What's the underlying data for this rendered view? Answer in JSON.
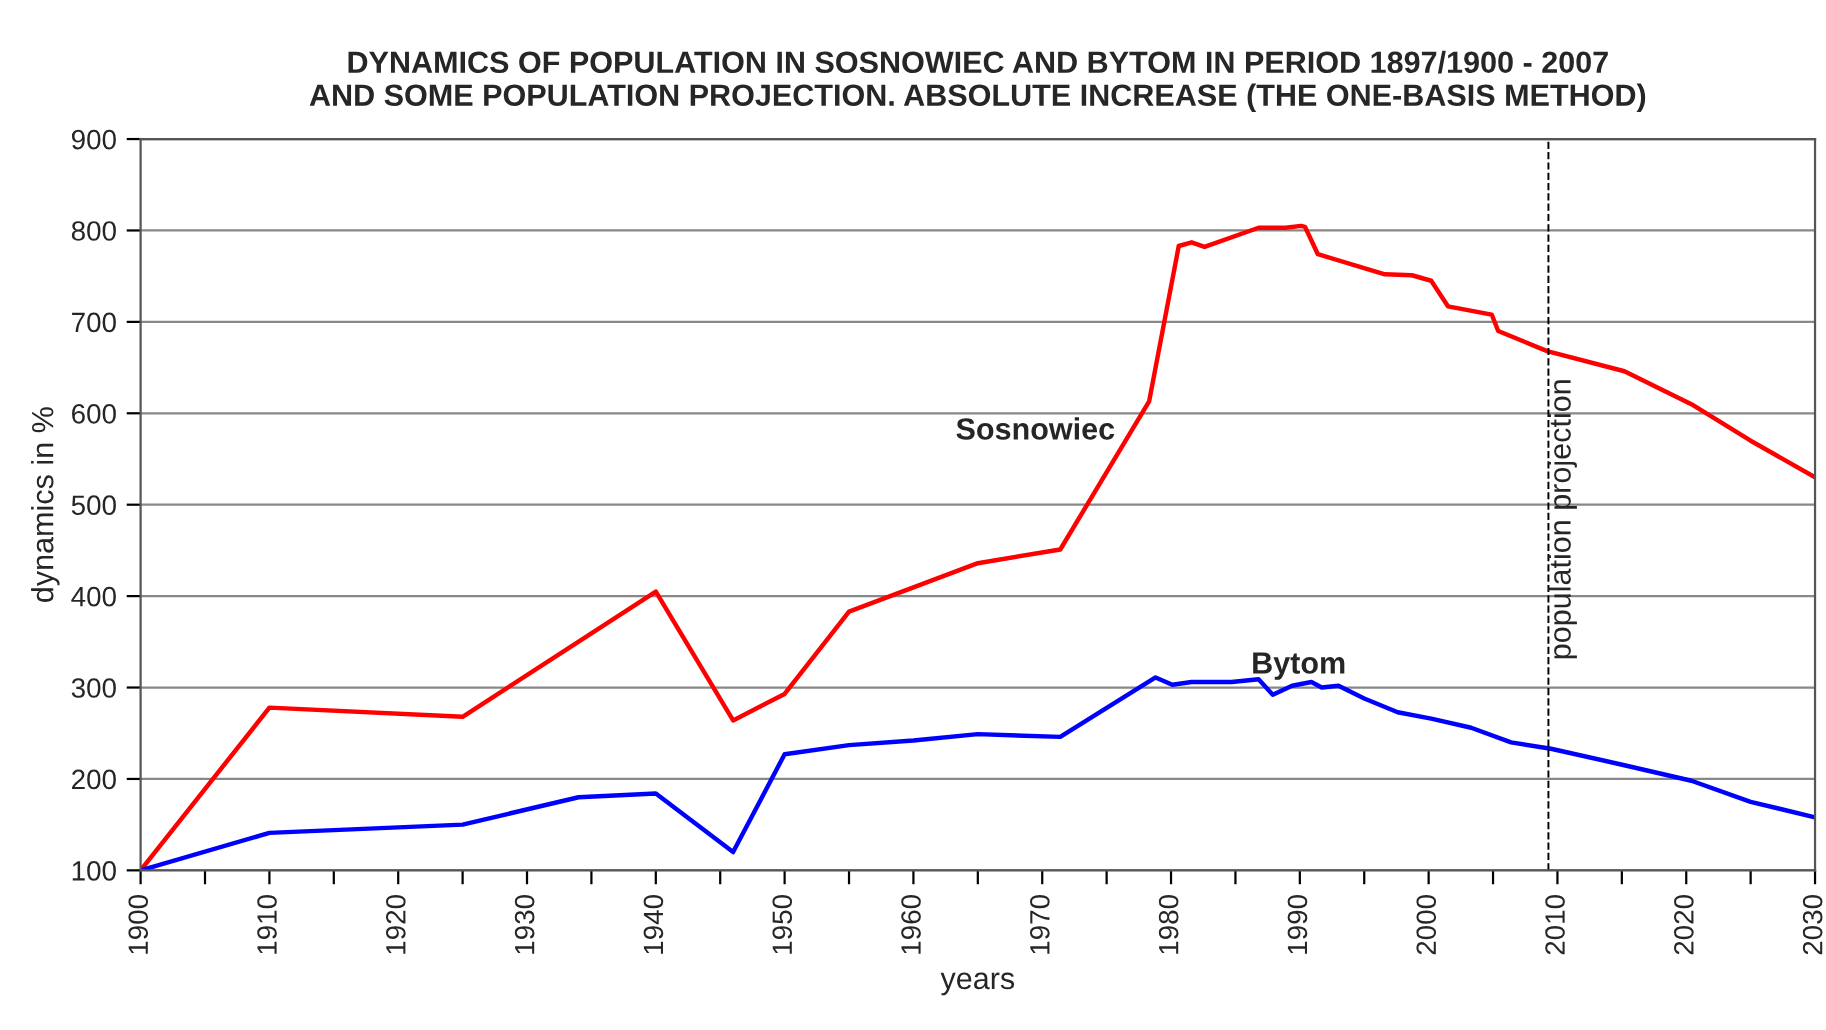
{
  "chart_data": {
    "type": "line",
    "title": "DYNAMICS OF POPULATION IN SOSNOWIEC AND BYTOM IN PERIOD 1897/1900 - 2007\nAND SOME POPULATION PROJECTION. ABSOLUTE INCREASE (THE ONE-BASIS METHOD)",
    "xlabel": "years",
    "ylabel": "dynamics in %",
    "series": [
      {
        "name": "Sosnowiec",
        "color": "#ff0000",
        "x": [
          1900,
          1910,
          1925,
          1940,
          1946,
          1950,
          1955,
          1965,
          1971.4,
          1978.3,
          1980.6,
          1981.6,
          1982.6,
          1986.8,
          1988.9,
          1990.1,
          1990.4,
          1991.4,
          1996.6,
          1998.7,
          2000.2,
          2001.5,
          2004.9,
          2005.4,
          2009.2,
          2015.2,
          2020.4,
          2025,
          2030
        ],
        "values": [
          100,
          278,
          268,
          405,
          264,
          293,
          383,
          436,
          451,
          613,
          783,
          787,
          782,
          803,
          803,
          805,
          804,
          774,
          752,
          751,
          745,
          717,
          708,
          690,
          668,
          646,
          610,
          570,
          530
        ]
      },
      {
        "name": "Bytom",
        "color": "#0000ff",
        "x": [
          1900,
          1910,
          1925,
          1934,
          1940,
          1946,
          1950,
          1955,
          1960,
          1965,
          1971.4,
          1978.8,
          1980.1,
          1981.6,
          1984.7,
          1986.8,
          1987.9,
          1989.4,
          1990.9,
          1991.7,
          1993,
          1995,
          1997.6,
          2000.2,
          2003.3,
          2006.4,
          2009.5,
          2015.2,
          2020.4,
          2025,
          2030
        ],
        "values": [
          100,
          141,
          150,
          180,
          184,
          120,
          227,
          237,
          242,
          249,
          246,
          311,
          303,
          306,
          306,
          309,
          292,
          302,
          306,
          300,
          302,
          288,
          273,
          266,
          256,
          240,
          233,
          215,
          198,
          175,
          158
        ]
      }
    ],
    "xlim": [
      1900,
      2030
    ],
    "ylim": [
      100,
      900
    ],
    "xticks": [
      1900,
      {
        "value": 1905,
        "label": null
      },
      1910,
      {
        "value": 1915,
        "label": null
      },
      1920,
      {
        "value": 1925,
        "label": null
      },
      1930,
      {
        "value": 1935,
        "label": null
      },
      1940,
      {
        "value": 1945,
        "label": null
      },
      1950,
      {
        "value": 1955,
        "label": null
      },
      1960,
      {
        "value": 1965,
        "label": null
      },
      1970,
      {
        "value": 1975,
        "label": null
      },
      1980,
      {
        "value": 1985,
        "label": null
      },
      1990,
      {
        "value": 1995,
        "label": null
      },
      2000,
      {
        "value": 2005,
        "label": null
      },
      2010,
      {
        "value": 2015,
        "label": null
      },
      2020,
      {
        "value": 2025,
        "label": null
      },
      2030
    ],
    "yticks": [
      100,
      200,
      300,
      400,
      500,
      600,
      700,
      800,
      900
    ],
    "grid": "y",
    "ref_lines": [
      {
        "axis": "x",
        "value": 2009.3,
        "label": "population projection",
        "color": "#000000",
        "line_style": "dashed"
      }
    ]
  }
}
